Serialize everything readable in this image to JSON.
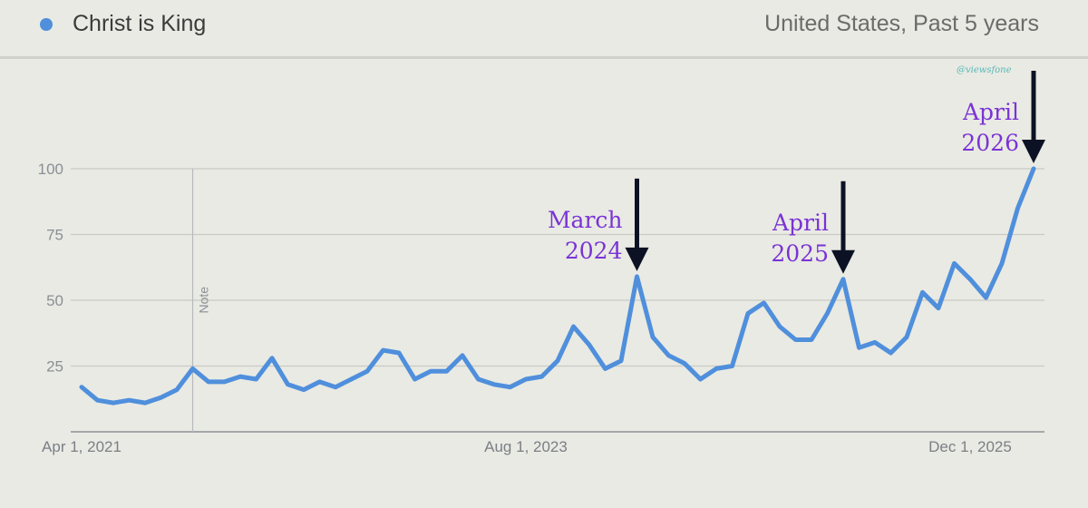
{
  "header": {
    "series_label": "Christ is King",
    "region_period": "United States, Past 5 years"
  },
  "watermark": "@viewsfone",
  "colors": {
    "line": "#4f8fdc",
    "grid": "#c9cac3",
    "annotation": "#7a33d6",
    "arrow": "#0c1224",
    "background": "#e9eae3"
  },
  "chart_data": {
    "type": "line",
    "x_start": "2021-04",
    "x_end": "2026-04",
    "ylim": [
      0,
      125
    ],
    "yticks": [
      25,
      50,
      75,
      100
    ],
    "grid": true,
    "xticks": [
      {
        "label": "Apr 1, 2021",
        "x": "2021-04"
      },
      {
        "label": "Aug 1, 2023",
        "x": "2023-08"
      },
      {
        "label": "Dec 1, 2025",
        "x": "2025-12"
      }
    ],
    "note": {
      "label": "Note",
      "x": "2021-11"
    },
    "series": [
      {
        "name": "Christ is King",
        "x": [
          "2021-04",
          "2021-05",
          "2021-06",
          "2021-07",
          "2021-08",
          "2021-09",
          "2021-10",
          "2021-11",
          "2021-12",
          "2022-01",
          "2022-02",
          "2022-03",
          "2022-04",
          "2022-05",
          "2022-06",
          "2022-07",
          "2022-08",
          "2022-09",
          "2022-10",
          "2022-11",
          "2022-12",
          "2023-01",
          "2023-02",
          "2023-03",
          "2023-04",
          "2023-05",
          "2023-06",
          "2023-07",
          "2023-08",
          "2023-09",
          "2023-10",
          "2023-11",
          "2023-12",
          "2024-01",
          "2024-02",
          "2024-03",
          "2024-04",
          "2024-05",
          "2024-06",
          "2024-07",
          "2024-08",
          "2024-09",
          "2024-10",
          "2024-11",
          "2024-12",
          "2025-01",
          "2025-02",
          "2025-03",
          "2025-04",
          "2025-05",
          "2025-06",
          "2025-07",
          "2025-08",
          "2025-09",
          "2025-10",
          "2025-11",
          "2025-12",
          "2026-01",
          "2026-02",
          "2026-03",
          "2026-04"
        ],
        "values": [
          17,
          12,
          11,
          12,
          11,
          13,
          16,
          24,
          19,
          19,
          21,
          20,
          28,
          18,
          16,
          19,
          17,
          20,
          23,
          31,
          30,
          20,
          23,
          23,
          29,
          20,
          18,
          17,
          20,
          21,
          27,
          40,
          33,
          24,
          27,
          59,
          36,
          29,
          26,
          20,
          24,
          25,
          45,
          49,
          40,
          35,
          35,
          45,
          58,
          32,
          34,
          30,
          36,
          53,
          47,
          64,
          58,
          51,
          64,
          85,
          100
        ]
      }
    ],
    "annotations": [
      {
        "lines": [
          "March",
          "2024"
        ],
        "x": "2024-03",
        "value": 59
      },
      {
        "lines": [
          "April",
          "2025"
        ],
        "x": "2025-04",
        "value": 58
      },
      {
        "lines": [
          "April",
          "2026"
        ],
        "x": "2026-04",
        "value": 100
      }
    ]
  }
}
